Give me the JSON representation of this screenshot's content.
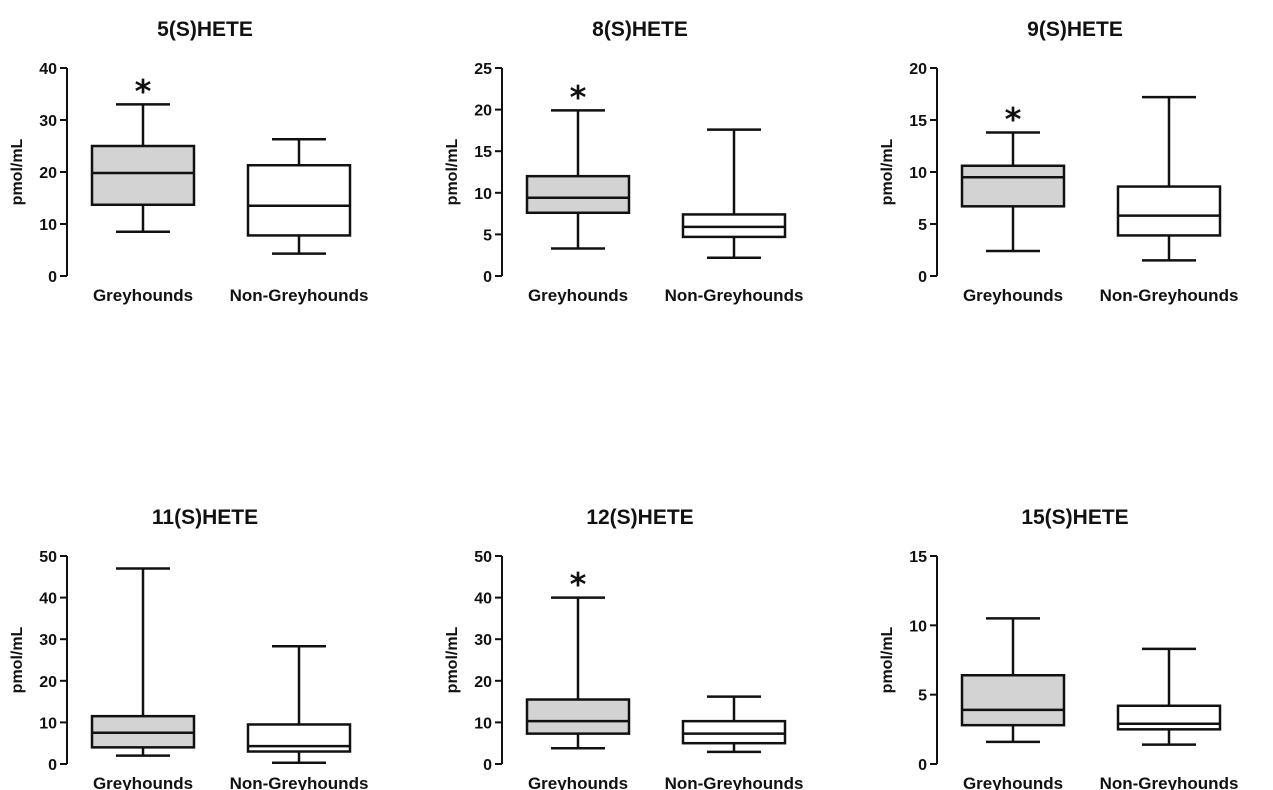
{
  "figure": {
    "fill_colors": {
      "greyhounds": "#d3d3d3",
      "non_greyhounds": "#ffffff"
    },
    "stroke_color": "#111111"
  },
  "chart_data": [
    {
      "type": "boxplot",
      "title": "5(S)HETE",
      "ylabel": "pmol/mL",
      "ylim": [
        0,
        40
      ],
      "yticks": [
        0,
        10,
        20,
        30,
        40
      ],
      "categories": [
        "Greyhounds",
        "Non-Greyhounds"
      ],
      "boxes": [
        {
          "category": "Greyhounds",
          "min": 8.5,
          "q1": 13.7,
          "median": 19.8,
          "q3": 25.0,
          "max": 33.0,
          "significant": true,
          "marker": "*"
        },
        {
          "category": "Non-Greyhounds",
          "min": 4.3,
          "q1": 7.8,
          "median": 13.5,
          "q3": 21.3,
          "max": 26.3,
          "significant": false,
          "marker": ""
        }
      ]
    },
    {
      "type": "boxplot",
      "title": "8(S)HETE",
      "ylabel": "pmol/mL",
      "ylim": [
        0,
        25
      ],
      "yticks": [
        0,
        5,
        10,
        15,
        20,
        25
      ],
      "categories": [
        "Greyhounds",
        "Non-Greyhounds"
      ],
      "boxes": [
        {
          "category": "Greyhounds",
          "min": 3.3,
          "q1": 7.6,
          "median": 9.4,
          "q3": 12.0,
          "max": 19.9,
          "significant": true,
          "marker": "*"
        },
        {
          "category": "Non-Greyhounds",
          "min": 2.2,
          "q1": 4.7,
          "median": 5.9,
          "q3": 7.4,
          "max": 17.6,
          "significant": false,
          "marker": ""
        }
      ]
    },
    {
      "type": "boxplot",
      "title": "9(S)HETE",
      "ylabel": "pmol/mL",
      "ylim": [
        0,
        20
      ],
      "yticks": [
        0,
        5,
        10,
        15,
        20
      ],
      "categories": [
        "Greyhounds",
        "Non-Greyhounds"
      ],
      "boxes": [
        {
          "category": "Greyhounds",
          "min": 2.4,
          "q1": 6.7,
          "median": 9.5,
          "q3": 10.6,
          "max": 13.8,
          "significant": true,
          "marker": "*"
        },
        {
          "category": "Non-Greyhounds",
          "min": 1.5,
          "q1": 3.9,
          "median": 5.8,
          "q3": 8.6,
          "max": 17.2,
          "significant": false,
          "marker": ""
        }
      ]
    },
    {
      "type": "boxplot",
      "title": "11(S)HETE",
      "ylabel": "pmol/mL",
      "ylim": [
        0,
        50
      ],
      "yticks": [
        0,
        10,
        20,
        30,
        40,
        50
      ],
      "categories": [
        "Greyhounds",
        "Non-Greyhounds"
      ],
      "boxes": [
        {
          "category": "Greyhounds",
          "min": 2.0,
          "q1": 4.0,
          "median": 7.5,
          "q3": 11.5,
          "max": 47.0,
          "significant": false,
          "marker": ""
        },
        {
          "category": "Non-Greyhounds",
          "min": 0.3,
          "q1": 3.0,
          "median": 4.3,
          "q3": 9.5,
          "max": 28.3,
          "significant": false,
          "marker": ""
        }
      ]
    },
    {
      "type": "boxplot",
      "title": "12(S)HETE",
      "ylabel": "pmol/mL",
      "ylim": [
        0,
        50
      ],
      "yticks": [
        0,
        10,
        20,
        30,
        40,
        50
      ],
      "categories": [
        "Greyhounds",
        "Non-Greyhounds"
      ],
      "boxes": [
        {
          "category": "Greyhounds",
          "min": 3.8,
          "q1": 7.3,
          "median": 10.3,
          "q3": 15.5,
          "max": 40.0,
          "significant": true,
          "marker": "*"
        },
        {
          "category": "Non-Greyhounds",
          "min": 2.9,
          "q1": 5.0,
          "median": 7.3,
          "q3": 10.3,
          "max": 16.2,
          "significant": false,
          "marker": ""
        }
      ]
    },
    {
      "type": "boxplot",
      "title": "15(S)HETE",
      "ylabel": "pmol/mL",
      "ylim": [
        0,
        15
      ],
      "yticks": [
        0,
        5,
        10,
        15
      ],
      "categories": [
        "Greyhounds",
        "Non-Greyhounds"
      ],
      "boxes": [
        {
          "category": "Greyhounds",
          "min": 1.6,
          "q1": 2.8,
          "median": 3.9,
          "q3": 6.4,
          "max": 10.5,
          "significant": false,
          "marker": ""
        },
        {
          "category": "Non-Greyhounds",
          "min": 1.4,
          "q1": 2.5,
          "median": 2.9,
          "q3": 4.2,
          "max": 8.3,
          "significant": false,
          "marker": ""
        }
      ]
    }
  ]
}
